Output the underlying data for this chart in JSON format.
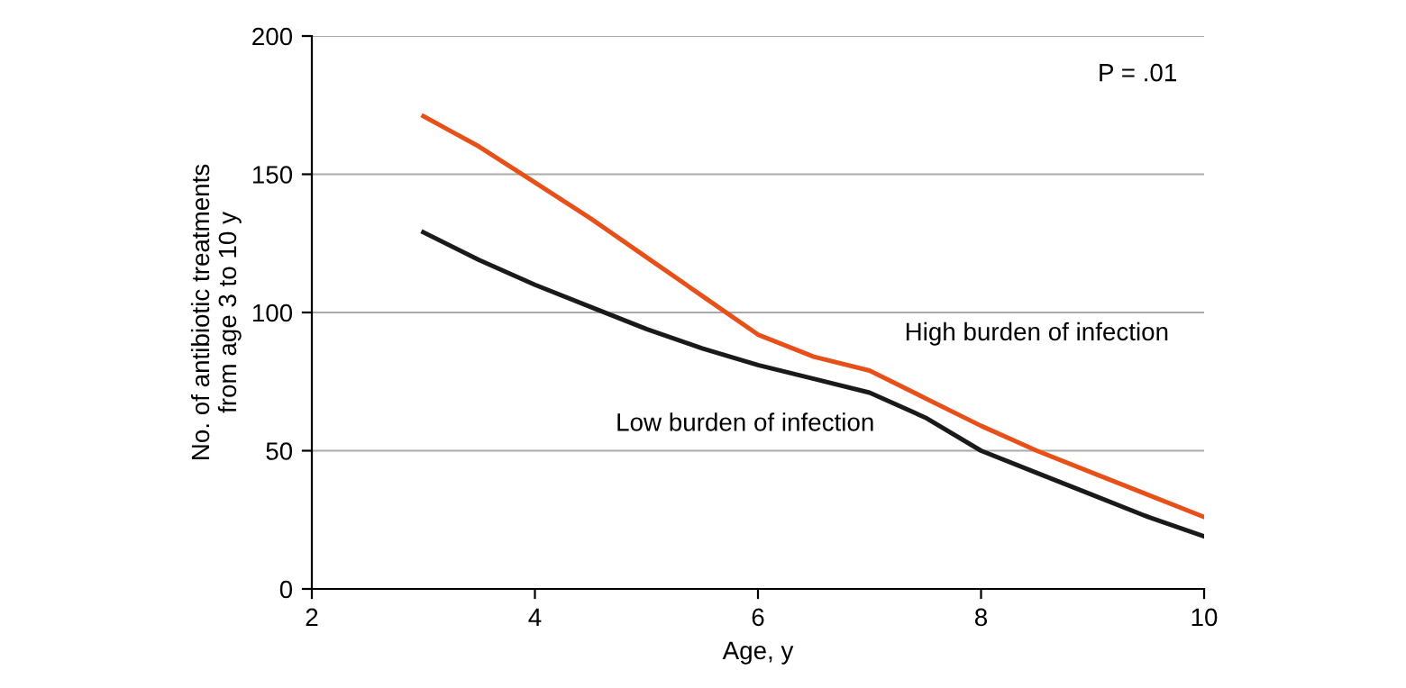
{
  "chart_data": {
    "type": "line",
    "xlabel": "Age, y",
    "ylabel": "No. of antibiotic treatments\nfrom age 3 to 10 y",
    "x": [
      3,
      3.5,
      4,
      4.5,
      5,
      5.5,
      6,
      6.5,
      7,
      7.5,
      8,
      8.5,
      9,
      9.5,
      10
    ],
    "series": [
      {
        "name": "High burden of infection",
        "color": "#e8501a",
        "values": [
          171,
          160,
          147,
          134,
          120,
          106,
          92,
          84,
          79,
          69,
          59,
          50,
          42,
          34,
          26
        ]
      },
      {
        "name": "Low burden of infection",
        "color": "#1a1a1a",
        "values": [
          129,
          119,
          110,
          102,
          94,
          87,
          81,
          76,
          71,
          62,
          50,
          42,
          34,
          26,
          19
        ]
      }
    ],
    "xlim": [
      2,
      10
    ],
    "xticks": [
      2,
      4,
      6,
      8,
      10
    ],
    "ylim": [
      0,
      200
    ],
    "yticks": [
      0,
      50,
      100,
      150,
      200
    ],
    "grid": "y",
    "legend": false,
    "marker": "none",
    "line_style": "solid",
    "annotations": [
      "P = .01"
    ]
  }
}
